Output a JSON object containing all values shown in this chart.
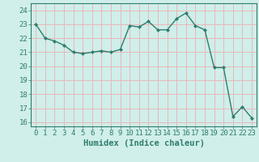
{
  "x": [
    0,
    1,
    2,
    3,
    4,
    5,
    6,
    7,
    8,
    9,
    10,
    11,
    12,
    13,
    14,
    15,
    16,
    17,
    18,
    19,
    20,
    21,
    22,
    23
  ],
  "y": [
    23.0,
    22.0,
    21.8,
    21.5,
    21.0,
    20.9,
    21.0,
    21.1,
    21.0,
    21.2,
    22.9,
    22.8,
    23.2,
    22.6,
    22.6,
    23.4,
    23.8,
    22.9,
    22.6,
    19.9,
    19.9,
    16.4,
    17.1,
    16.3
  ],
  "line_color": "#2e7d6e",
  "marker_color": "#2e7d6e",
  "bg_color": "#d0eeea",
  "grid_color": "#e8b8b8",
  "title": "",
  "xlabel": "Humidex (Indice chaleur)",
  "ylabel": "",
  "ylim": [
    15.7,
    24.5
  ],
  "xlim": [
    -0.5,
    23.5
  ],
  "yticks": [
    16,
    17,
    18,
    19,
    20,
    21,
    22,
    23,
    24
  ],
  "xticks": [
    0,
    1,
    2,
    3,
    4,
    5,
    6,
    7,
    8,
    9,
    10,
    11,
    12,
    13,
    14,
    15,
    16,
    17,
    18,
    19,
    20,
    21,
    22,
    23
  ],
  "tick_label_fontsize": 6.5,
  "xlabel_fontsize": 7.5,
  "tick_color": "#2e7d6e"
}
